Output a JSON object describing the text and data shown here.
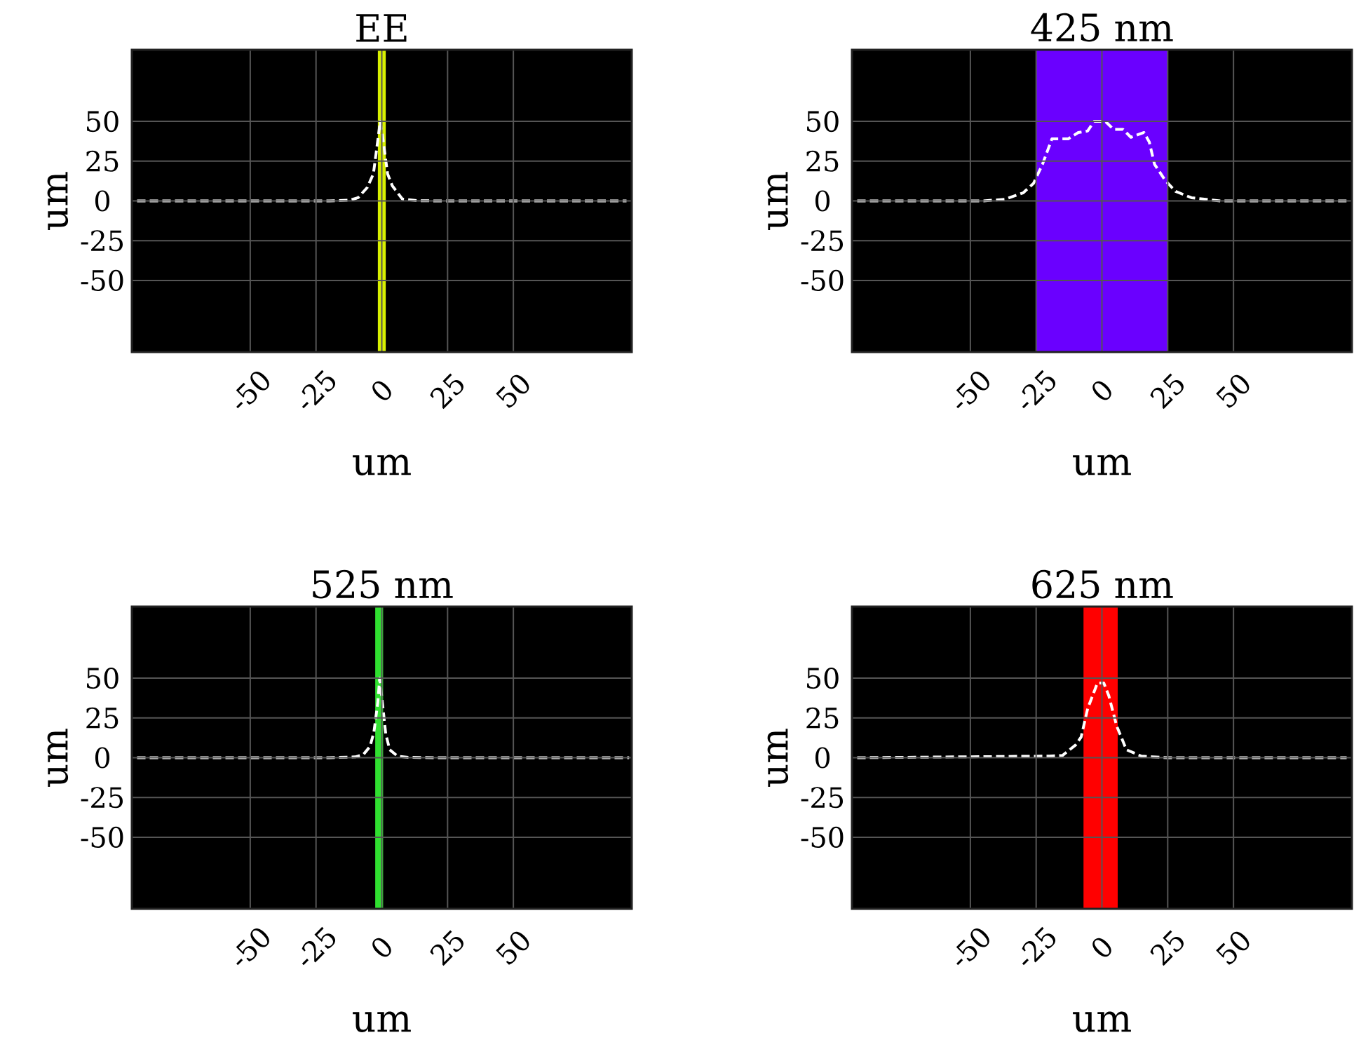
{
  "chart_data": [
    {
      "type": "line",
      "title": "EE",
      "xlabel": "um",
      "ylabel": "um",
      "xlim": [
        -95,
        95
      ],
      "ylim": [
        -95,
        95
      ],
      "xticks": [
        -50,
        -25,
        0,
        25,
        50
      ],
      "yticks": [
        50,
        25,
        0,
        -25,
        -50
      ],
      "grid": true,
      "line_style": "dashed",
      "bands": [
        {
          "axis": "x",
          "from": -1.5,
          "to": 1.5,
          "color": "#d8f000"
        }
      ],
      "series": [
        {
          "color": "#ffffff",
          "x": [
            -93,
            -20,
            -12,
            -9,
            -5.5,
            -3.2,
            -1.6,
            -0.6,
            0.6,
            2.2,
            4,
            7.8,
            13.5,
            20,
            93
          ],
          "values": [
            0,
            0,
            0.5,
            2,
            8.5,
            17,
            37,
            50,
            37,
            17,
            9.5,
            1.2,
            0.2,
            0,
            0
          ]
        }
      ]
    },
    {
      "type": "line",
      "title": "425 nm",
      "xlabel": "um",
      "ylabel": "um",
      "xlim": [
        -95,
        95
      ],
      "ylim": [
        -95,
        95
      ],
      "xticks": [
        -50,
        -25,
        0,
        25,
        50
      ],
      "yticks": [
        50,
        25,
        0,
        -25,
        -50
      ],
      "grid": true,
      "line_style": "dashed",
      "bands": [
        {
          "axis": "x",
          "from": -25,
          "to": 25,
          "color": "#6a00ff"
        }
      ],
      "series": [
        {
          "color": "#ffffff",
          "x": [
            -93,
            -45,
            -37,
            -30,
            -26,
            -22.6,
            -19,
            -12.8,
            -9,
            -5.4,
            -3,
            1.3,
            4.4,
            8,
            11,
            16,
            18,
            20,
            24,
            28,
            34,
            45,
            93
          ],
          "values": [
            0,
            0,
            1,
            5,
            11,
            23,
            39,
            39,
            43,
            44,
            50,
            50,
            45,
            45,
            40,
            43,
            37,
            23,
            13,
            6,
            2,
            0,
            0
          ]
        }
      ]
    },
    {
      "type": "line",
      "title": "525 nm",
      "xlabel": "um",
      "ylabel": "um",
      "xlim": [
        -95,
        95
      ],
      "ylim": [
        -95,
        95
      ],
      "xticks": [
        -50,
        -25,
        0,
        25,
        50
      ],
      "yticks": [
        50,
        25,
        0,
        -25,
        -50
      ],
      "grid": true,
      "line_style": "dashed",
      "bands": [
        {
          "axis": "x",
          "from": -2.5,
          "to": 0.5,
          "color": "#30e030"
        }
      ],
      "series": [
        {
          "color": "#ffffff",
          "x": [
            -93,
            -20,
            -10,
            -7,
            -4.5,
            -3,
            -1.5,
            -0.8,
            0.2,
            1.5,
            3,
            6,
            10,
            20,
            94
          ],
          "values": [
            0,
            0,
            0.5,
            2,
            7,
            16,
            35,
            50,
            35,
            15,
            5,
            1,
            0.2,
            0,
            0
          ]
        }
      ]
    },
    {
      "type": "line",
      "title": "625 nm",
      "xlabel": "um",
      "ylabel": "um",
      "xlim": [
        -95,
        95
      ],
      "ylim": [
        -95,
        95
      ],
      "xticks": [
        -50,
        -25,
        0,
        25,
        50
      ],
      "yticks": [
        50,
        25,
        0,
        -25,
        -50
      ],
      "grid": true,
      "line_style": "dashed",
      "bands": [
        {
          "axis": "x",
          "from": -7,
          "to": 6,
          "color": "#ff0000"
        }
      ],
      "series": [
        {
          "color": "#ffffff",
          "x": [
            -93,
            -20,
            -15,
            -10,
            -7.9,
            -5.4,
            -1.7,
            0.7,
            2.6,
            5.6,
            9.3,
            15,
            19,
            25,
            93
          ],
          "values": [
            0,
            1,
            1.4,
            8,
            13,
            31,
            47,
            47,
            39,
            20,
            5,
            1,
            0.6,
            0,
            0
          ]
        }
      ]
    }
  ]
}
